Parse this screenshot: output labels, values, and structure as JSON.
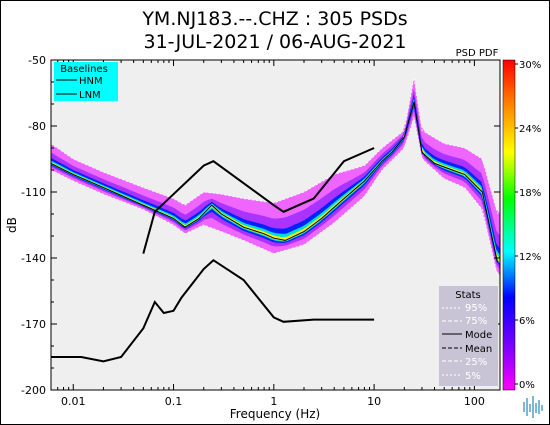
{
  "chart_data": {
    "type": "line",
    "title_line1": "YM.NJ183.--.CHZ : 305 PSDs",
    "title_line2": "31-JUL-2021 / 06-AUG-2021",
    "xlabel": "Frequency (Hz)",
    "ylabel": "dB",
    "x_scale": "log",
    "xlim": [
      0.006,
      180
    ],
    "ylim": [
      -200,
      -50
    ],
    "x_ticks": [
      {
        "value": 0.01,
        "label": "0.01"
      },
      {
        "value": 0.1,
        "label": "0.1"
      },
      {
        "value": 1,
        "label": "1"
      },
      {
        "value": 10,
        "label": "10"
      },
      {
        "value": 100,
        "label": "100"
      }
    ],
    "y_ticks": [
      {
        "value": -50,
        "label": "-50"
      },
      {
        "value": -80,
        "label": "-80"
      },
      {
        "value": -110,
        "label": "-110"
      },
      {
        "value": -140,
        "label": "-140"
      },
      {
        "value": -170,
        "label": "-170"
      },
      {
        "value": -200,
        "label": "-200"
      }
    ],
    "colorbar": {
      "title": "PSD PDF",
      "range": [
        0,
        30
      ],
      "unit": "%",
      "ticks": [
        "30%",
        "24%",
        "18%",
        "12%",
        "6%",
        "0%"
      ],
      "colors": [
        "#ff0000",
        "#ff8800",
        "#ffff00",
        "#00ff00",
        "#00ffff",
        "#0000ff",
        "#8800ff",
        "#ff00ff"
      ]
    },
    "baselines": {
      "title": "Baselines",
      "entries": [
        "HNM",
        "LNM"
      ],
      "HNM": {
        "x": [
          0.05,
          0.065,
          0.1,
          0.2,
          0.25,
          1,
          1.25,
          2.5,
          5,
          10
        ],
        "y": [
          -138,
          -119,
          -111,
          -98,
          -96,
          -116,
          -119,
          -113,
          -96,
          -90
        ]
      },
      "LNM": {
        "x": [
          0.006,
          0.012,
          0.02,
          0.03,
          0.05,
          0.065,
          0.08,
          0.1,
          0.12,
          0.2,
          0.25,
          0.5,
          1,
          1.25,
          2.5,
          5,
          10
        ],
        "y": [
          -185,
          -185,
          -187,
          -185,
          -172,
          -160,
          -165,
          -164,
          -158,
          -145,
          -141,
          -150,
          -167,
          -169,
          -168,
          -168,
          -168
        ]
      }
    },
    "stats": {
      "title": "Stats",
      "entries": [
        "95%",
        "75%",
        "Mode",
        "Mean",
        "25%",
        "5%"
      ],
      "mode": {
        "x": [
          0.006,
          0.01,
          0.02,
          0.05,
          0.1,
          0.13,
          0.18,
          0.24,
          0.3,
          0.5,
          0.8,
          1,
          1.3,
          2,
          3,
          5,
          8,
          12,
          15,
          20,
          25,
          30,
          40,
          60,
          80,
          120,
          170
        ],
        "y": [
          -97,
          -102,
          -108,
          -116,
          -122,
          -126,
          -122,
          -116,
          -120,
          -126,
          -129,
          -131,
          -132,
          -128,
          -122,
          -113,
          -105,
          -96,
          -92,
          -85,
          -69,
          -92,
          -97,
          -100,
          -102,
          -110,
          -142
        ]
      },
      "p95": {
        "x": [
          0.006,
          0.01,
          0.02,
          0.05,
          0.1,
          0.13,
          0.2,
          0.3,
          0.5,
          1,
          2,
          4,
          8,
          12,
          20,
          25,
          30,
          50,
          80,
          120,
          170
        ],
        "y": [
          -88,
          -95,
          -101,
          -108,
          -113,
          -116,
          -110,
          -111,
          -113,
          -115,
          -110,
          -102,
          -98,
          -90,
          -82,
          -58,
          -82,
          -88,
          -90,
          -95,
          -120
        ]
      },
      "p5": {
        "x": [
          0.006,
          0.01,
          0.02,
          0.05,
          0.1,
          0.13,
          0.2,
          0.3,
          0.5,
          1,
          2,
          4,
          8,
          12,
          20,
          25,
          30,
          50,
          80,
          120,
          170
        ],
        "y": [
          -100,
          -105,
          -111,
          -118,
          -125,
          -129,
          -125,
          -128,
          -132,
          -138,
          -134,
          -124,
          -112,
          -100,
          -90,
          -76,
          -95,
          -104,
          -108,
          -118,
          -148
        ]
      }
    }
  }
}
